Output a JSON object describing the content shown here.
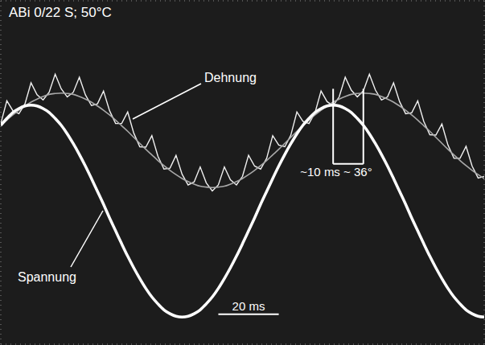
{
  "chart_data": {
    "type": "line",
    "title": "ABi 0/22 S; 50°C",
    "x": [
      0,
      2,
      4,
      6,
      8,
      10,
      12,
      14,
      16,
      18,
      20,
      22,
      24,
      26,
      28,
      30,
      32,
      34,
      36,
      38,
      40,
      42,
      44,
      46,
      48,
      50,
      52,
      54,
      56,
      58,
      60,
      62,
      64,
      66,
      68,
      70,
      72,
      74,
      76,
      78,
      80,
      82,
      84,
      86,
      88,
      90,
      92,
      94,
      96,
      98,
      100,
      102,
      104,
      106,
      108,
      110,
      112,
      114,
      116,
      118,
      120,
      122,
      124,
      126,
      128,
      130,
      132,
      134,
      136,
      138,
      140,
      142,
      144,
      146,
      148,
      150,
      152,
      154,
      156,
      158,
      160
    ],
    "series": [
      {
        "name": "Dehnung",
        "color": "#f0f0f0",
        "values": [
          1.14,
          1.67,
          1.44,
          1.37,
          1.6,
          2.09,
          1.81,
          1.69,
          1.87,
          2.29,
          1.95,
          1.76,
          1.87,
          2.22,
          1.81,
          1.56,
          1.6,
          1.9,
          1.44,
          1.14,
          1.14,
          1.41,
          0.92,
          0.6,
          0.59,
          0.86,
          0.38,
          0.08,
          0.1,
          0.4,
          -0.04,
          -0.29,
          -0.22,
          0.13,
          -0.24,
          -0.43,
          -0.29,
          0.13,
          -0.17,
          -0.29,
          -0.09,
          0.4,
          0.15,
          0.08,
          0.33,
          0.86,
          0.64,
          0.6,
          0.87,
          1.41,
          1.19,
          1.14,
          1.39,
          1.9,
          1.65,
          1.56,
          1.76,
          2.22,
          1.92,
          1.76,
          1.9,
          2.29,
          1.92,
          1.69,
          1.76,
          2.09,
          1.65,
          1.37,
          1.39,
          1.67,
          1.19,
          0.88,
          0.87,
          1.13,
          0.64,
          0.33,
          0.33,
          0.61,
          0.15,
          -0.13,
          -0.09
        ]
      },
      {
        "color": "#a8a8a8",
        "values": [
          1.09,
          1.22,
          1.34,
          1.45,
          1.55,
          1.64,
          1.71,
          1.77,
          1.82,
          1.84,
          1.85,
          1.84,
          1.82,
          1.77,
          1.71,
          1.64,
          1.55,
          1.45,
          1.34,
          1.22,
          1.09,
          0.96,
          0.82,
          0.68,
          0.54,
          0.41,
          0.28,
          0.16,
          0.05,
          -0.05,
          -0.14,
          -0.21,
          -0.27,
          -0.32,
          -0.34,
          -0.35,
          -0.34,
          -0.32,
          -0.27,
          -0.21,
          -0.14,
          -0.05,
          0.05,
          0.16,
          0.28,
          0.41,
          0.54,
          0.68,
          0.82,
          0.96,
          1.09,
          1.22,
          1.34,
          1.45,
          1.55,
          1.64,
          1.71,
          1.77,
          1.82,
          1.84,
          1.85,
          1.84,
          1.82,
          1.77,
          1.71,
          1.64,
          1.55,
          1.45,
          1.34,
          1.22,
          1.09,
          0.96,
          0.82,
          0.68,
          0.54,
          0.41,
          0.28,
          0.16,
          0.05,
          -0.05,
          -0.14
        ]
      },
      {
        "name": "Spannung",
        "color": "#ffffff",
        "values": [
          1.1,
          1.26,
          1.4,
          1.49,
          1.55,
          1.57,
          1.55,
          1.49,
          1.4,
          1.26,
          1.1,
          0.9,
          0.67,
          0.42,
          0.15,
          -0.14,
          -0.44,
          -0.74,
          -1.06,
          -1.36,
          -1.66,
          -1.95,
          -2.22,
          -2.47,
          -2.7,
          -2.9,
          -3.06,
          -3.2,
          -3.29,
          -3.35,
          -3.37,
          -3.35,
          -3.29,
          -3.2,
          -3.06,
          -2.9,
          -2.7,
          -2.47,
          -2.22,
          -1.95,
          -1.66,
          -1.36,
          -1.06,
          -0.74,
          -0.44,
          -0.14,
          0.15,
          0.42,
          0.67,
          0.9,
          1.1,
          1.26,
          1.4,
          1.49,
          1.55,
          1.57,
          1.55,
          1.49,
          1.4,
          1.26,
          1.1,
          0.9,
          0.67,
          0.42,
          0.15,
          -0.14,
          -0.44,
          -0.74,
          -1.06,
          -1.36,
          -1.66,
          -1.95,
          -2.22,
          -2.47,
          -2.7,
          -2.9,
          -3.06,
          -3.2,
          -3.29,
          -3.35,
          -3.37
        ]
      }
    ],
    "xlim": [
      0,
      160
    ],
    "xticks": [
      0,
      16,
      32,
      48,
      64,
      80,
      96,
      112,
      128,
      144,
      160
    ],
    "ylim": [
      -4,
      4
    ],
    "yticks": [
      -4,
      -3,
      -2,
      -1,
      0,
      1,
      2,
      3,
      4
    ],
    "grid": true,
    "tick_labels": false,
    "annotations": [
      {
        "text": "~10 ms ~ 36°",
        "x": [
          110,
          120
        ]
      },
      {
        "text": "20 ms",
        "x": [
          72,
          92
        ]
      }
    ]
  }
}
